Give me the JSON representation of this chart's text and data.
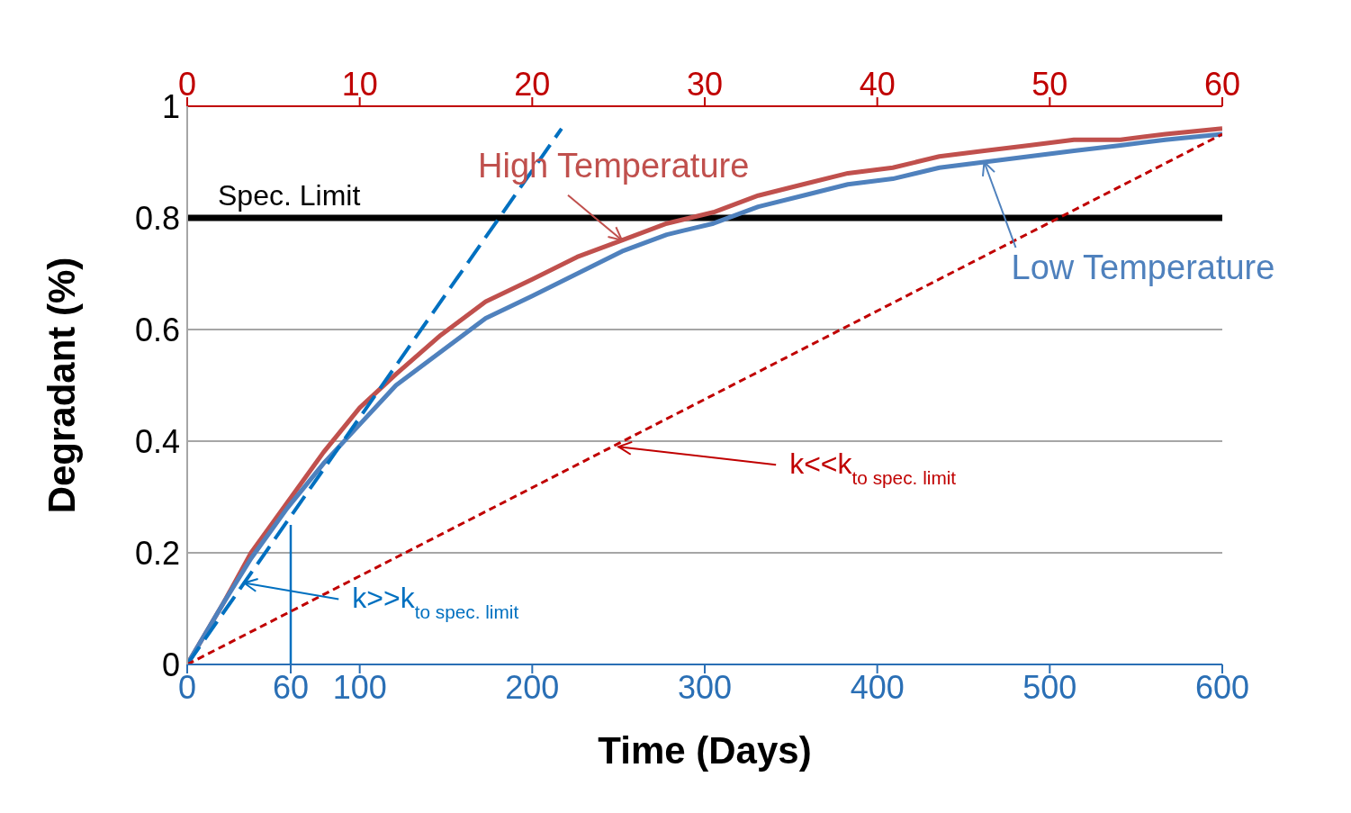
{
  "chart_data": {
    "type": "line",
    "xlabel": "Time (Days)",
    "ylabel": "Degradant (%)",
    "xlim": [
      0,
      600
    ],
    "xticks": [
      0,
      60,
      100,
      200,
      300,
      400,
      500,
      600
    ],
    "x2lim": [
      0,
      60
    ],
    "x2ticks": [
      0,
      10,
      20,
      30,
      40,
      50,
      60
    ],
    "ylim": [
      0,
      1
    ],
    "yticks": [
      0,
      0.2,
      0.4,
      0.6,
      0.8,
      1
    ],
    "grid": "y",
    "legend": false,
    "marker": "none",
    "ref_lines": [
      {
        "axis": "y",
        "value": 0.8,
        "label": "Spec. Limit",
        "color": "#000000"
      }
    ],
    "annotations": [
      {
        "text": "k>>k$_{to spec. limit}$",
        "x": 33,
        "y": 0.146
      },
      {
        "text": "k<<k$_{to spec. limit}$",
        "x": 250,
        "y": 0.39
      }
    ],
    "series": [
      {
        "name": "High Temperature",
        "color": "#c0504d",
        "line_style": "solid",
        "x": [
          0,
          21,
          37,
          58,
          79,
          100,
          121,
          147,
          173,
          200,
          226,
          252,
          278,
          305,
          331,
          357,
          383,
          409,
          436,
          462,
          488,
          514,
          541,
          567,
          600
        ],
        "values": [
          0,
          0.11,
          0.2,
          0.29,
          0.38,
          0.46,
          0.52,
          0.59,
          0.65,
          0.69,
          0.73,
          0.76,
          0.79,
          0.81,
          0.84,
          0.86,
          0.88,
          0.89,
          0.91,
          0.92,
          0.93,
          0.94,
          0.94,
          0.95,
          0.96
        ]
      },
      {
        "name": "Low Temperature",
        "color": "#4f81bd",
        "line_style": "solid",
        "x": [
          0,
          21,
          37,
          58,
          79,
          100,
          121,
          147,
          173,
          200,
          226,
          252,
          278,
          305,
          331,
          357,
          383,
          409,
          436,
          462,
          488,
          514,
          541,
          567,
          600
        ],
        "values": [
          0,
          0.11,
          0.19,
          0.28,
          0.36,
          0.43,
          0.5,
          0.56,
          0.62,
          0.66,
          0.7,
          0.74,
          0.77,
          0.79,
          0.82,
          0.84,
          0.86,
          0.87,
          0.89,
          0.9,
          0.91,
          0.92,
          0.93,
          0.94,
          0.95
        ]
      },
      {
        "color": "#0070c0",
        "line_style": "dashed",
        "x": [
          0,
          217
        ],
        "values": [
          0,
          0.96
        ]
      },
      {
        "color": "#0070c0",
        "line_style": "solid",
        "x": [
          60,
          60
        ],
        "values": [
          0,
          0.25
        ]
      },
      {
        "color": "#c00000",
        "line_style": "dotted",
        "x": [
          0,
          600
        ],
        "values": [
          0,
          0.95
        ]
      }
    ]
  }
}
